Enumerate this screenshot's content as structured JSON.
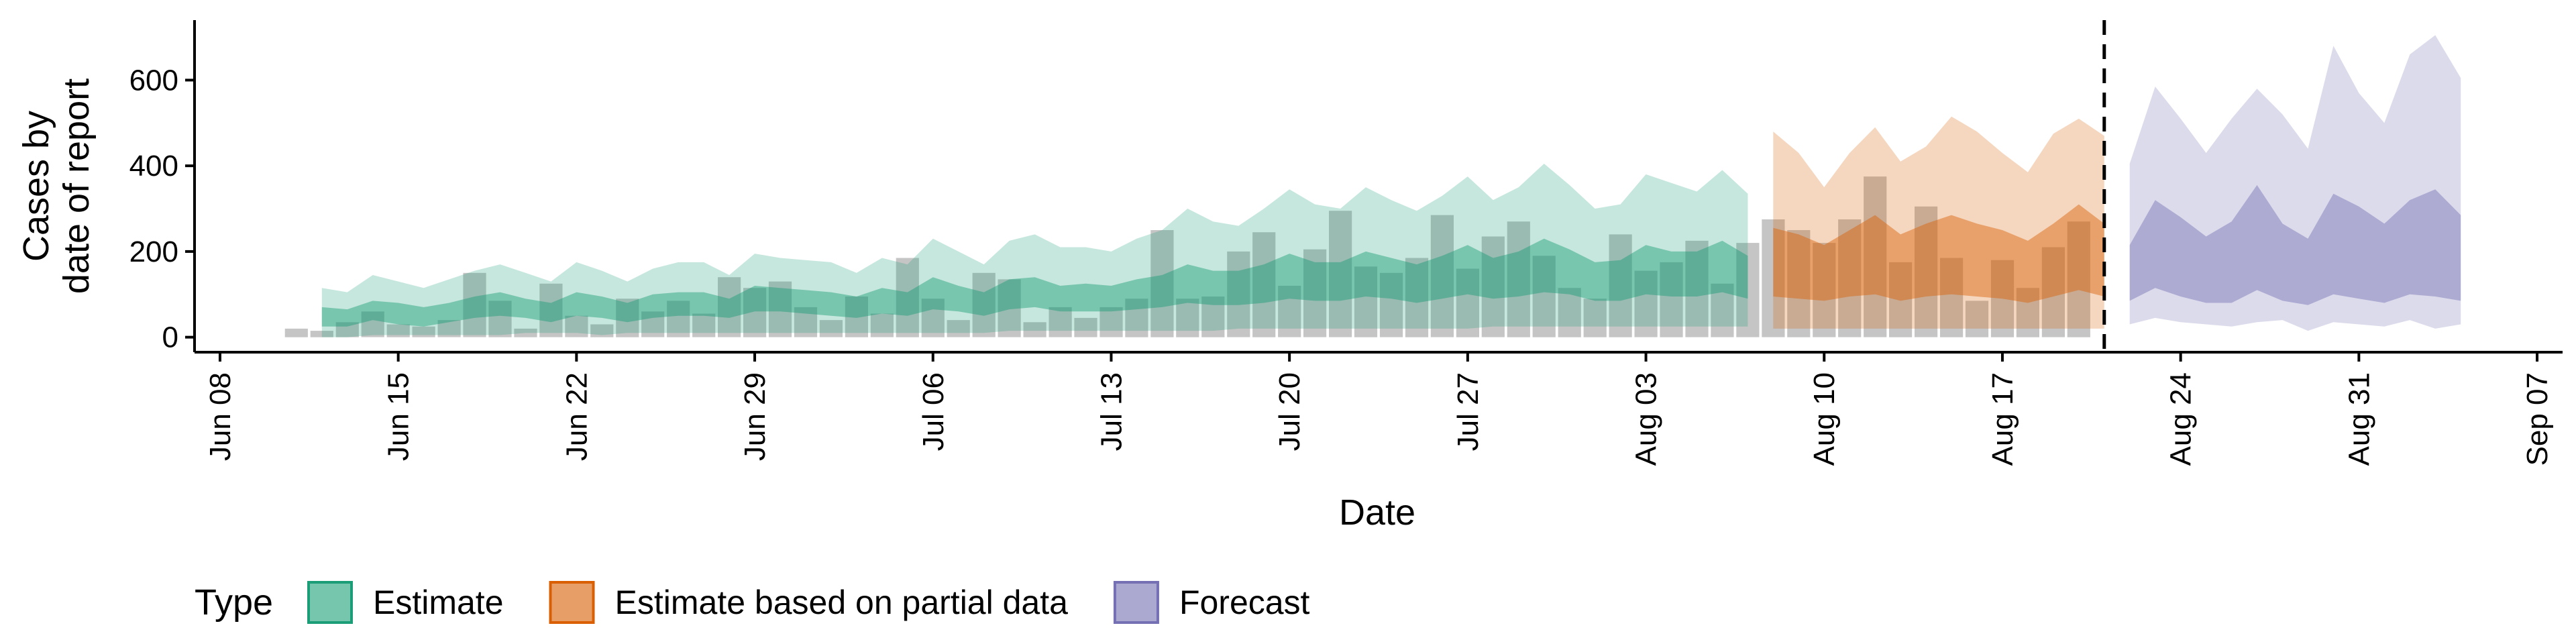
{
  "chart_data": {
    "type": "area",
    "xlabel": "Date",
    "ylabel_lines": [
      "Cases by",
      "date of report"
    ],
    "x_ticks": [
      "Jun 08",
      "Jun 15",
      "Jun 22",
      "Jun 29",
      "Jul 06",
      "Jul 13",
      "Jul 20",
      "Jul 27",
      "Aug 03",
      "Aug 10",
      "Aug 17",
      "Aug 24",
      "Aug 31",
      "Sep 07"
    ],
    "y_ticks": [
      0,
      200,
      400,
      600
    ],
    "xlim": [
      "2020-06-07",
      "2020-09-08"
    ],
    "ylim": [
      -35,
      740
    ],
    "reference_line": "2020-08-21",
    "legend": {
      "title": "Type",
      "position": "bottom-left",
      "items": [
        {
          "label": "Estimate",
          "fill": "#1b9e77",
          "alpha": 0.6
        },
        {
          "label": "Estimate based on partial data",
          "fill": "#d95f02",
          "alpha": 0.6
        },
        {
          "label": "Forecast",
          "fill": "#7570b3",
          "alpha": 0.6
        }
      ]
    },
    "colors": {
      "Estimate": "#1b9e77",
      "Estimate based on partial data": "#d95f02",
      "Forecast": "#7570b3",
      "bars": "#9e9e9e"
    },
    "bars": {
      "start_date": "2020-06-11",
      "values": [
        20,
        15,
        35,
        60,
        30,
        25,
        40,
        150,
        85,
        20,
        125,
        50,
        30,
        90,
        60,
        85,
        55,
        140,
        115,
        130,
        70,
        40,
        95,
        55,
        185,
        90,
        40,
        150,
        135,
        35,
        70,
        45,
        70,
        90,
        250,
        90,
        95,
        200,
        245,
        120,
        205,
        295,
        165,
        150,
        185,
        285,
        160,
        235,
        270,
        190,
        115,
        90,
        240,
        155,
        175,
        225,
        125,
        220,
        275,
        250,
        220,
        275,
        375,
        175,
        305,
        185,
        85,
        180,
        115,
        210,
        270
      ]
    },
    "estimate": {
      "start_date": "2020-06-12",
      "dates_end": "2020-08-07",
      "outer_low": [
        0,
        0,
        5,
        5,
        5,
        5,
        5,
        5,
        10,
        10,
        10,
        5,
        10,
        10,
        10,
        10,
        10,
        10,
        10,
        10,
        10,
        10,
        10,
        10,
        10,
        10,
        10,
        15,
        15,
        15,
        15,
        15,
        15,
        15,
        15,
        15,
        20,
        20,
        20,
        20,
        20,
        20,
        20,
        20,
        20,
        20,
        25,
        25,
        25,
        25,
        25,
        25,
        25,
        25,
        25,
        25,
        25
      ],
      "inner_low": [
        25,
        25,
        40,
        30,
        25,
        35,
        45,
        50,
        45,
        35,
        50,
        45,
        35,
        45,
        50,
        50,
        45,
        60,
        60,
        55,
        50,
        45,
        55,
        50,
        65,
        60,
        50,
        65,
        70,
        60,
        60,
        60,
        65,
        70,
        80,
        75,
        75,
        80,
        90,
        85,
        85,
        95,
        90,
        80,
        90,
        100,
        90,
        95,
        105,
        100,
        85,
        85,
        100,
        95,
        95,
        105,
        90
      ],
      "median": [
        45,
        45,
        60,
        55,
        45,
        55,
        65,
        75,
        65,
        55,
        75,
        65,
        55,
        70,
        75,
        75,
        65,
        90,
        85,
        80,
        75,
        65,
        80,
        75,
        100,
        85,
        75,
        95,
        100,
        85,
        90,
        85,
        95,
        100,
        120,
        110,
        110,
        120,
        135,
        125,
        125,
        140,
        130,
        120,
        135,
        150,
        130,
        140,
        160,
        145,
        125,
        125,
        150,
        140,
        140,
        155,
        135
      ],
      "inner_high": [
        70,
        65,
        85,
        80,
        70,
        80,
        95,
        105,
        90,
        80,
        105,
        95,
        80,
        100,
        105,
        105,
        90,
        120,
        115,
        110,
        105,
        95,
        115,
        105,
        140,
        120,
        105,
        135,
        140,
        120,
        125,
        120,
        135,
        145,
        170,
        155,
        155,
        170,
        195,
        175,
        175,
        200,
        185,
        170,
        190,
        215,
        185,
        200,
        230,
        205,
        175,
        180,
        215,
        200,
        200,
        225,
        190
      ],
      "outer_high": [
        115,
        105,
        145,
        130,
        115,
        135,
        155,
        170,
        150,
        130,
        175,
        155,
        130,
        160,
        175,
        175,
        145,
        195,
        185,
        180,
        175,
        150,
        185,
        170,
        230,
        200,
        170,
        225,
        240,
        210,
        210,
        200,
        230,
        250,
        300,
        270,
        260,
        300,
        345,
        310,
        300,
        350,
        320,
        295,
        330,
        375,
        320,
        350,
        405,
        355,
        300,
        310,
        380,
        360,
        340,
        390,
        335
      ]
    },
    "partial": {
      "start_date": "2020-08-08",
      "dates_end": "2020-08-21",
      "outer_low": [
        20,
        20,
        20,
        20,
        20,
        20,
        20,
        20,
        20,
        20,
        20,
        20,
        20,
        20
      ],
      "inner_low": [
        95,
        90,
        85,
        95,
        100,
        85,
        95,
        100,
        95,
        90,
        80,
        95,
        110,
        95
      ],
      "median": [
        160,
        150,
        140,
        165,
        185,
        150,
        170,
        185,
        175,
        160,
        145,
        170,
        200,
        170
      ],
      "inner_high": [
        255,
        240,
        215,
        250,
        285,
        240,
        265,
        285,
        265,
        250,
        225,
        265,
        310,
        265
      ],
      "outer_high": [
        480,
        430,
        350,
        430,
        490,
        410,
        445,
        515,
        480,
        430,
        385,
        475,
        510,
        470
      ]
    },
    "forecast": {
      "start_date": "2020-08-22",
      "dates_end": "2020-09-04",
      "outer_low": [
        30,
        45,
        35,
        30,
        25,
        35,
        40,
        15,
        35,
        30,
        25,
        40,
        20,
        30
      ],
      "inner_low": [
        85,
        115,
        95,
        80,
        80,
        110,
        85,
        75,
        100,
        90,
        80,
        100,
        95,
        85
      ],
      "median": [
        145,
        215,
        180,
        155,
        180,
        240,
        180,
        150,
        220,
        200,
        170,
        215,
        225,
        185
      ],
      "inner_high": [
        215,
        320,
        280,
        235,
        270,
        355,
        265,
        230,
        335,
        305,
        265,
        320,
        345,
        285
      ],
      "outer_high": [
        405,
        585,
        510,
        430,
        510,
        580,
        520,
        440,
        680,
        570,
        500,
        660,
        705,
        605
      ]
    }
  }
}
